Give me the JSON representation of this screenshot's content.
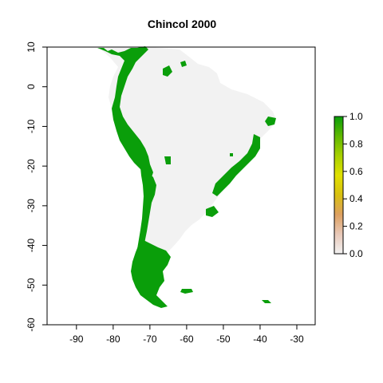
{
  "title": "Chincol 2000",
  "colors": {
    "land": "#F2F2F2",
    "presence": "#0A9E0A",
    "frame": "#000000"
  },
  "map": {
    "x_range": [
      -98,
      -25
    ],
    "y_range": [
      -60,
      10
    ],
    "x_ticks": [
      "-90",
      "-80",
      "-70",
      "-60",
      "-50",
      "-40",
      "-30"
    ],
    "x_tick_values": [
      -90,
      -80,
      -70,
      -60,
      -50,
      -40,
      -30
    ],
    "y_ticks": [
      "10",
      "0",
      "-10",
      "-20",
      "-30",
      "-40",
      "-50",
      "-60"
    ],
    "y_tick_values": [
      10,
      0,
      -10,
      -20,
      -30,
      -40,
      -50,
      -60
    ]
  },
  "legend": {
    "ticks": [
      "1.0",
      "0.8",
      "0.6",
      "0.4",
      "0.2",
      "0.0"
    ],
    "tick_values": [
      1.0,
      0.8,
      0.6,
      0.4,
      0.2,
      0.0
    ],
    "gradient": [
      "#F2F2F2",
      "#E8C8B8",
      "#DDA060",
      "#D8C010",
      "#E0E000",
      "#A8D000",
      "#60B800",
      "#0A9E0A"
    ]
  }
}
